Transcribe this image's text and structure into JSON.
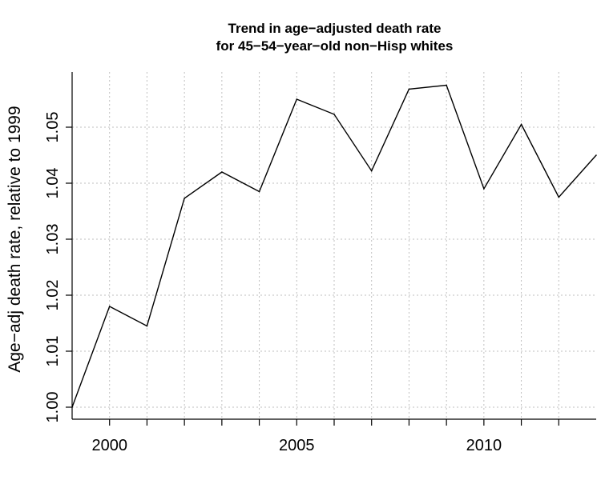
{
  "chart_data": {
    "type": "line",
    "title_lines": [
      "Trend in age−adjusted death rate",
      "for 45−54−year−old non−Hisp whites"
    ],
    "xlabel": "",
    "ylabel": "Age−adj death rate, relative to 1999",
    "x": [
      1999,
      2000,
      2001,
      2002,
      2003,
      2004,
      2005,
      2006,
      2007,
      2008,
      2009,
      2010,
      2011,
      2012,
      2013
    ],
    "series": [
      {
        "values": [
          1.0,
          1.018,
          1.0145,
          1.0373,
          1.042,
          1.0385,
          1.055,
          1.0523,
          1.0422,
          1.0568,
          1.0575,
          1.039,
          1.0505,
          1.0375,
          1.045
        ],
        "color": "#000000"
      }
    ],
    "xlim": [
      1999,
      2013
    ],
    "ylim": [
      1.0,
      1.06
    ],
    "x_ticks": [
      2000,
      2005,
      2010
    ],
    "x_tick_labels": [
      "2000",
      "2005",
      "2010"
    ],
    "y_ticks": [
      1.0,
      1.01,
      1.02,
      1.03,
      1.04,
      1.05
    ],
    "y_tick_labels": [
      "1.00",
      "1.01",
      "1.02",
      "1.03",
      "1.04",
      "1.05"
    ],
    "grid": true,
    "grid_color": "#bfbfbf"
  }
}
